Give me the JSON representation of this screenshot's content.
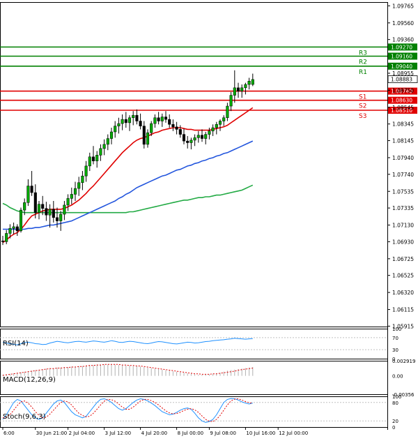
{
  "colors": {
    "background": "#ffffff",
    "axis": "#000000",
    "bull": "#00aa00",
    "bear": "#000000",
    "resistance": "#008000",
    "support": "#e00000",
    "ma_fast": "#e00000",
    "ma_mid": "#2255dd",
    "ma_slow": "#22aa44",
    "rsi": "#1e90ff",
    "macd_hist": "#b0b0b0",
    "macd_signal": "#e00000",
    "stoch_main": "#1e90ff",
    "stoch_signal": "#e00000",
    "price_tag": "#ffffff"
  },
  "chart_data": [
    {
      "type": "candlestick",
      "title": "",
      "price_axis": {
        "ticks": [
          "1.09765",
          "1.09560",
          "1.09360",
          "1.08955",
          "1.08750",
          "1.08545",
          "1.08345",
          "1.08145",
          "1.07940",
          "1.07740",
          "1.07535",
          "1.07335",
          "1.07130",
          "1.06930",
          "1.06725",
          "1.06525",
          "1.06320",
          "1.06115",
          "1.05915"
        ],
        "ylim": [
          1.0591,
          1.0981
        ]
      },
      "time_axis": {
        "labels": [
          "6:00",
          "30 Jun 21:00",
          "2 Jul 04:00",
          "3 Jul 12:00",
          "4 Jul 20:00",
          "8 Jul 00:00",
          "9 Jul 08:00",
          "10 Jul 16:00",
          "12 Jul 00:00"
        ],
        "label_index": [
          0,
          9,
          18,
          28,
          38,
          48,
          57,
          67,
          76
        ]
      },
      "levels": [
        {
          "name": "R3",
          "value": "1.09270",
          "kind": "resistance"
        },
        {
          "name": "R2",
          "value": "1.09160",
          "kind": "resistance"
        },
        {
          "name": "R1",
          "value": "1.09040",
          "kind": "resistance"
        },
        {
          "name": "S1",
          "value": "1.08740",
          "kind": "support"
        },
        {
          "name": "S2",
          "value": "1.08630",
          "kind": "support"
        },
        {
          "name": "S3",
          "value": "1.08510",
          "kind": "support"
        }
      ],
      "current_price": "1.08883",
      "candles": [
        [
          1.0694,
          1.07,
          1.0689,
          1.0693
        ],
        [
          1.0693,
          1.0707,
          1.069,
          1.0703
        ],
        [
          1.0703,
          1.0714,
          1.0697,
          1.0709
        ],
        [
          1.0709,
          1.0716,
          1.0702,
          1.0711
        ],
        [
          1.0711,
          1.0714,
          1.07,
          1.0706
        ],
        [
          1.0706,
          1.0734,
          1.0704,
          1.0731
        ],
        [
          1.0731,
          1.0745,
          1.0725,
          1.074
        ],
        [
          1.074,
          1.0768,
          1.0736,
          1.076
        ],
        [
          1.076,
          1.0778,
          1.0748,
          1.0752
        ],
        [
          1.0752,
          1.0762,
          1.0721,
          1.0728
        ],
        [
          1.0728,
          1.0742,
          1.072,
          1.0738
        ],
        [
          1.0738,
          1.0748,
          1.0725,
          1.0733
        ],
        [
          1.0733,
          1.0741,
          1.0718,
          1.0725
        ],
        [
          1.0725,
          1.0738,
          1.071,
          1.0732
        ],
        [
          1.0732,
          1.0742,
          1.0716,
          1.0722
        ],
        [
          1.0722,
          1.0734,
          1.071,
          1.0718
        ],
        [
          1.0718,
          1.073,
          1.0706,
          1.0726
        ],
        [
          1.0726,
          1.0742,
          1.0719,
          1.0737
        ],
        [
          1.0737,
          1.075,
          1.073,
          1.0745
        ],
        [
          1.0745,
          1.0758,
          1.0738,
          1.075
        ],
        [
          1.075,
          1.0765,
          1.0742,
          1.0757
        ],
        [
          1.0757,
          1.0771,
          1.0748,
          1.0764
        ],
        [
          1.0764,
          1.0778,
          1.0755,
          1.0772
        ],
        [
          1.0772,
          1.079,
          1.0765,
          1.0784
        ],
        [
          1.0784,
          1.08,
          1.0778,
          1.0795
        ],
        [
          1.0795,
          1.0808,
          1.0786,
          1.079
        ],
        [
          1.079,
          1.0802,
          1.0782,
          1.0797
        ],
        [
          1.0797,
          1.081,
          1.079,
          1.0805
        ],
        [
          1.0805,
          1.0816,
          1.0797,
          1.081
        ],
        [
          1.081,
          1.0822,
          1.0803,
          1.0817
        ],
        [
          1.0817,
          1.083,
          1.081,
          1.0825
        ],
        [
          1.0825,
          1.0838,
          1.0818,
          1.0832
        ],
        [
          1.0832,
          1.0842,
          1.0823,
          1.0835
        ],
        [
          1.0835,
          1.0846,
          1.0827,
          1.084
        ],
        [
          1.084,
          1.0849,
          1.083,
          1.0836
        ],
        [
          1.0836,
          1.0845,
          1.0826,
          1.0842
        ],
        [
          1.0842,
          1.085,
          1.0833,
          1.0845
        ],
        [
          1.0845,
          1.0852,
          1.0834,
          1.0838
        ],
        [
          1.0838,
          1.0847,
          1.0828,
          1.0832
        ],
        [
          1.0832,
          1.0838,
          1.0805,
          1.081
        ],
        [
          1.081,
          1.0828,
          1.0806,
          1.0824
        ],
        [
          1.0824,
          1.0838,
          1.082,
          1.0835
        ],
        [
          1.0835,
          1.0846,
          1.083,
          1.0842
        ],
        [
          1.0842,
          1.0849,
          1.0834,
          1.0838
        ],
        [
          1.0838,
          1.0847,
          1.0831,
          1.0843
        ],
        [
          1.0843,
          1.085,
          1.0836,
          1.084
        ],
        [
          1.084,
          1.0846,
          1.083,
          1.0834
        ],
        [
          1.0834,
          1.084,
          1.0826,
          1.0831
        ],
        [
          1.0831,
          1.0837,
          1.0822,
          1.0828
        ],
        [
          1.0828,
          1.0833,
          1.0818,
          1.0822
        ],
        [
          1.0822,
          1.0829,
          1.081,
          1.0814
        ],
        [
          1.0814,
          1.082,
          1.0805,
          1.0812
        ],
        [
          1.0812,
          1.0818,
          1.0804,
          1.0815
        ],
        [
          1.0815,
          1.0822,
          1.0808,
          1.0818
        ],
        [
          1.0818,
          1.0826,
          1.0812,
          1.0821
        ],
        [
          1.0821,
          1.0828,
          1.0813,
          1.0817
        ],
        [
          1.0817,
          1.0825,
          1.081,
          1.0822
        ],
        [
          1.0822,
          1.083,
          1.0816,
          1.0826
        ],
        [
          1.0826,
          1.0834,
          1.082,
          1.083
        ],
        [
          1.083,
          1.0837,
          1.0822,
          1.0834
        ],
        [
          1.0834,
          1.084,
          1.0826,
          1.0838
        ],
        [
          1.0838,
          1.0845,
          1.0832,
          1.0842
        ],
        [
          1.0842,
          1.086,
          1.0838,
          1.0856
        ],
        [
          1.0856,
          1.0873,
          1.085,
          1.0869
        ],
        [
          1.0869,
          1.0899,
          1.086,
          1.0878
        ],
        [
          1.0878,
          1.0884,
          1.0866,
          1.0874
        ],
        [
          1.0874,
          1.0882,
          1.0866,
          1.0878
        ],
        [
          1.0878,
          1.0884,
          1.087,
          1.0882
        ],
        [
          1.0882,
          1.089,
          1.0876,
          1.0886
        ],
        [
          1.0882,
          1.0895,
          1.088,
          1.0888
        ]
      ],
      "ma_fast": [
        1.0692,
        1.0695,
        1.0699,
        1.0702,
        1.0704,
        1.0708,
        1.0713,
        1.0719,
        1.0724,
        1.0726,
        1.0728,
        1.073,
        1.0731,
        1.0732,
        1.0732,
        1.0732,
        1.0732,
        1.0733,
        1.0735,
        1.0737,
        1.074,
        1.0743,
        1.0747,
        1.0751,
        1.0756,
        1.076,
        1.0765,
        1.077,
        1.0775,
        1.078,
        1.0785,
        1.079,
        1.0795,
        1.08,
        1.0804,
        1.0808,
        1.0812,
        1.0815,
        1.0817,
        1.0818,
        1.082,
        1.0822,
        1.0824,
        1.0825,
        1.0827,
        1.0828,
        1.0829,
        1.083,
        1.083,
        1.083,
        1.0829,
        1.0828,
        1.0828,
        1.0827,
        1.0827,
        1.0827,
        1.0827,
        1.0827,
        1.0828,
        1.0829,
        1.083,
        1.0831,
        1.0833,
        1.0836,
        1.0839,
        1.0842,
        1.0845,
        1.0848,
        1.0851,
        1.0854
      ],
      "ma_mid": [
        1.0708,
        1.0708,
        1.0708,
        1.0708,
        1.0708,
        1.0708,
        1.0708,
        1.0709,
        1.0709,
        1.071,
        1.071,
        1.0711,
        1.0712,
        1.0713,
        1.0713,
        1.0714,
        1.0715,
        1.0716,
        1.0717,
        1.0718,
        1.072,
        1.0722,
        1.0724,
        1.0726,
        1.0728,
        1.073,
        1.0732,
        1.0734,
        1.0736,
        1.0738,
        1.074,
        1.0742,
        1.0745,
        1.0747,
        1.075,
        1.0752,
        1.0755,
        1.0758,
        1.076,
        1.0762,
        1.0764,
        1.0766,
        1.0768,
        1.077,
        1.0772,
        1.0773,
        1.0775,
        1.0777,
        1.0779,
        1.078,
        1.0782,
        1.0784,
        1.0785,
        1.0787,
        1.0788,
        1.079,
        1.0791,
        1.0793,
        1.0794,
        1.0796,
        1.0797,
        1.0799,
        1.08,
        1.0802,
        1.0804,
        1.0806,
        1.0808,
        1.081,
        1.0812,
        1.0814
      ],
      "ma_slow": [
        1.0739,
        1.0737,
        1.0734,
        1.0732,
        1.073,
        1.0729,
        1.0728,
        1.0728,
        1.0728,
        1.0728,
        1.0728,
        1.0728,
        1.0728,
        1.0728,
        1.0728,
        1.0728,
        1.0728,
        1.0728,
        1.0728,
        1.0728,
        1.0728,
        1.0728,
        1.0728,
        1.0728,
        1.0728,
        1.0728,
        1.0728,
        1.0728,
        1.0728,
        1.0728,
        1.0728,
        1.0728,
        1.0728,
        1.0728,
        1.0728,
        1.0729,
        1.0729,
        1.073,
        1.0731,
        1.0732,
        1.0733,
        1.0734,
        1.0735,
        1.0736,
        1.0737,
        1.0738,
        1.0739,
        1.074,
        1.0741,
        1.0742,
        1.0743,
        1.0743,
        1.0744,
        1.0745,
        1.0746,
        1.0746,
        1.0747,
        1.0747,
        1.0748,
        1.0749,
        1.0749,
        1.075,
        1.0751,
        1.0752,
        1.0753,
        1.0754,
        1.0755,
        1.0757,
        1.0759,
        1.0761
      ]
    },
    {
      "type": "line",
      "label": "RSI(14)",
      "ticks": [
        "100",
        "70",
        "30",
        "0"
      ],
      "ylim": [
        0,
        100
      ],
      "values": [
        55,
        52,
        50,
        48,
        46,
        50,
        54,
        55,
        53,
        50,
        49,
        47,
        48,
        52,
        55,
        58,
        56,
        54,
        53,
        55,
        57,
        58,
        56,
        55,
        57,
        59,
        58,
        56,
        55,
        57,
        60,
        58,
        55,
        54,
        56,
        58,
        57,
        55,
        53,
        51,
        50,
        52,
        55,
        57,
        56,
        54,
        52,
        50,
        49,
        51,
        53,
        55,
        54,
        52,
        53,
        55,
        57,
        58,
        60,
        61,
        62,
        63,
        65,
        66,
        68,
        67,
        66,
        65,
        66,
        67
      ]
    },
    {
      "type": "bar",
      "label": "MACD(12,26,9)",
      "ticks": [
        "0.002919",
        "0.00",
        "-0.00356"
      ],
      "ylim": [
        -0.00356,
        0.002919
      ],
      "hist": [
        0.0002,
        0.0003,
        0.0004,
        0.0005,
        0.0006,
        0.0007,
        0.0008,
        0.0009,
        0.001,
        0.0011,
        0.0012,
        0.0013,
        0.0014,
        0.0015,
        0.0015,
        0.0016,
        0.0016,
        0.0017,
        0.0017,
        0.0018,
        0.0018,
        0.0019,
        0.0019,
        0.002,
        0.0021,
        0.0021,
        0.0022,
        0.0022,
        0.0022,
        0.0022,
        0.0022,
        0.0022,
        0.0021,
        0.0021,
        0.002,
        0.002,
        0.0019,
        0.0019,
        0.0018,
        0.0017,
        0.0016,
        0.0015,
        0.0014,
        0.0013,
        0.0012,
        0.0011,
        0.001,
        0.0009,
        0.0008,
        0.0007,
        0.0006,
        0.0005,
        0.0004,
        0.0003,
        0.0002,
        0.0002,
        0.0003,
        0.0003,
        0.0004,
        0.0005,
        0.0006,
        0.0008,
        0.001,
        0.0011,
        0.0012,
        0.0013,
        0.0014,
        0.0015,
        0.0016,
        0.0017
      ],
      "signal": [
        0.0001,
        0.0002,
        0.0003,
        0.0004,
        0.0005,
        0.0006,
        0.0007,
        0.0008,
        0.0009,
        0.001,
        0.0011,
        0.0012,
        0.0013,
        0.0014,
        0.0014,
        0.0015,
        0.0015,
        0.0016,
        0.0016,
        0.0017,
        0.0017,
        0.0018,
        0.0018,
        0.0019,
        0.002,
        0.002,
        0.0021,
        0.0021,
        0.0022,
        0.0022,
        0.0022,
        0.0022,
        0.0022,
        0.0021,
        0.0021,
        0.002,
        0.002,
        0.0019,
        0.0019,
        0.0018,
        0.0017,
        0.0016,
        0.0015,
        0.0014,
        0.0013,
        0.0012,
        0.0011,
        0.001,
        0.0009,
        0.0008,
        0.0007,
        0.0006,
        0.0005,
        0.0004,
        0.0004,
        0.0003,
        0.0003,
        0.0003,
        0.0004,
        0.0004,
        0.0005,
        0.0006,
        0.0007,
        0.0008,
        0.0009,
        0.0011,
        0.0012,
        0.0013,
        0.0014,
        0.0015
      ]
    },
    {
      "type": "line",
      "label": "Stoch(9,6,3)",
      "ticks": [
        "100",
        "80",
        "20",
        "0"
      ],
      "ylim": [
        0,
        100
      ],
      "main": [
        25,
        40,
        60,
        80,
        90,
        85,
        70,
        55,
        40,
        30,
        25,
        30,
        45,
        60,
        75,
        85,
        88,
        80,
        65,
        50,
        40,
        35,
        30,
        35,
        50,
        65,
        80,
        90,
        92,
        88,
        80,
        70,
        60,
        55,
        60,
        70,
        80,
        88,
        92,
        90,
        85,
        78,
        70,
        60,
        50,
        45,
        40,
        42,
        48,
        55,
        60,
        62,
        58,
        45,
        30,
        20,
        15,
        18,
        25,
        40,
        60,
        80,
        90,
        93,
        92,
        88,
        82,
        78,
        75,
        78
      ],
      "signal": [
        30,
        32,
        40,
        55,
        70,
        82,
        85,
        78,
        65,
        50,
        38,
        30,
        32,
        42,
        55,
        68,
        80,
        85,
        82,
        72,
        58,
        45,
        38,
        33,
        35,
        45,
        58,
        72,
        84,
        90,
        89,
        84,
        75,
        65,
        58,
        58,
        65,
        75,
        85,
        90,
        90,
        86,
        80,
        72,
        62,
        53,
        46,
        43,
        44,
        48,
        54,
        58,
        60,
        56,
        48,
        36,
        25,
        19,
        18,
        25,
        38,
        55,
        72,
        85,
        91,
        92,
        88,
        83,
        79,
        77
      ]
    }
  ]
}
